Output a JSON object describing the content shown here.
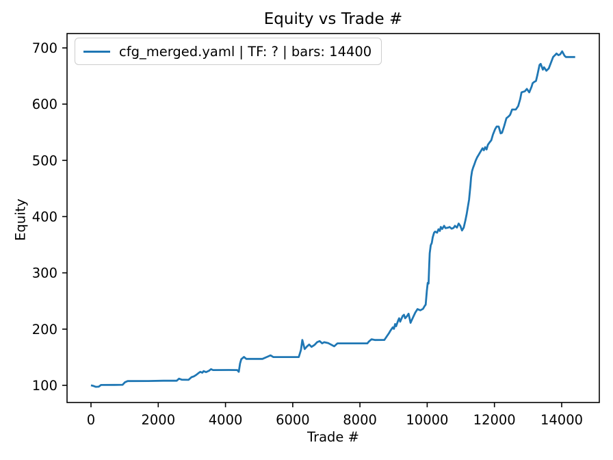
{
  "chart_data": {
    "type": "line",
    "title": "Equity vs Trade #",
    "xlabel": "Trade #",
    "ylabel": "Equity",
    "grid": false,
    "legend_position": "upper left",
    "axis_color": "#000000",
    "background_color": "#ffffff",
    "xlim": [
      -712,
      15119
    ],
    "ylim": [
      69.5,
      725.5
    ],
    "x_ticks": [
      0,
      2000,
      4000,
      6000,
      8000,
      10000,
      12000,
      14000
    ],
    "x_tick_labels": [
      "0",
      "2000",
      "4000",
      "6000",
      "8000",
      "10000",
      "12000",
      "14000"
    ],
    "y_ticks": [
      100,
      200,
      300,
      400,
      500,
      600,
      700
    ],
    "y_tick_labels": [
      "100",
      "200",
      "300",
      "400",
      "500",
      "600",
      "700"
    ],
    "legend": [
      {
        "label": "cfg_merged.yaml | TF: ? | bars: 14400",
        "color": "#1f77b4"
      }
    ],
    "series": [
      {
        "name": "cfg_merged.yaml | TF: ? | bars: 14400",
        "color": "#1f77b4",
        "points": [
          [
            0,
            100
          ],
          [
            60,
            99.2
          ],
          [
            140,
            97.4
          ],
          [
            230,
            97.6
          ],
          [
            300,
            100.6
          ],
          [
            700,
            100.8
          ],
          [
            940,
            101
          ],
          [
            1010,
            105.5
          ],
          [
            1090,
            107.6
          ],
          [
            1700,
            107.7
          ],
          [
            2150,
            108.2
          ],
          [
            2550,
            108.2
          ],
          [
            2620,
            111.8
          ],
          [
            2700,
            110
          ],
          [
            2900,
            109.8
          ],
          [
            2990,
            114.5
          ],
          [
            3060,
            116
          ],
          [
            3130,
            118.5
          ],
          [
            3190,
            121.5
          ],
          [
            3250,
            124
          ],
          [
            3310,
            122.5
          ],
          [
            3350,
            125.2
          ],
          [
            3420,
            123.5
          ],
          [
            3510,
            126
          ],
          [
            3570,
            128.8
          ],
          [
            3630,
            127.2
          ],
          [
            4100,
            127.3
          ],
          [
            4350,
            127.2
          ],
          [
            4395,
            124
          ],
          [
            4435,
            139
          ],
          [
            4470,
            146.5
          ],
          [
            4550,
            150.4
          ],
          [
            4620,
            147
          ],
          [
            5100,
            147
          ],
          [
            5260,
            151.2
          ],
          [
            5340,
            153.4
          ],
          [
            5420,
            150.3
          ],
          [
            6180,
            150.3
          ],
          [
            6245,
            163
          ],
          [
            6285,
            180.7
          ],
          [
            6355,
            164.5
          ],
          [
            6430,
            169.5
          ],
          [
            6490,
            172.6
          ],
          [
            6560,
            168.5
          ],
          [
            6650,
            172
          ],
          [
            6725,
            176.7
          ],
          [
            6800,
            178.7
          ],
          [
            6875,
            174.6
          ],
          [
            6935,
            176.7
          ],
          [
            7060,
            175
          ],
          [
            7235,
            169.4
          ],
          [
            7330,
            174.6
          ],
          [
            8220,
            174.6
          ],
          [
            8265,
            178
          ],
          [
            8345,
            182
          ],
          [
            8450,
            180.6
          ],
          [
            8725,
            180.7
          ],
          [
            8795,
            186.8
          ],
          [
            8865,
            193
          ],
          [
            8905,
            197
          ],
          [
            8975,
            203.1
          ],
          [
            9010,
            200.5
          ],
          [
            9045,
            209
          ],
          [
            9075,
            205.1
          ],
          [
            9135,
            215.2
          ],
          [
            9165,
            219.3
          ],
          [
            9195,
            213.2
          ],
          [
            9270,
            223.3
          ],
          [
            9310,
            225.4
          ],
          [
            9345,
            219.3
          ],
          [
            9400,
            223
          ],
          [
            9445,
            227.4
          ],
          [
            9505,
            211.2
          ],
          [
            9565,
            219.3
          ],
          [
            9645,
            229.4
          ],
          [
            9710,
            235.5
          ],
          [
            9795,
            233.5
          ],
          [
            9875,
            236
          ],
          [
            9925,
            241
          ],
          [
            9955,
            243.6
          ],
          [
            9990,
            268
          ],
          [
            10015,
            282.2
          ],
          [
            10040,
            281
          ],
          [
            10060,
            315
          ],
          [
            10075,
            334.9
          ],
          [
            10105,
            349.1
          ],
          [
            10135,
            353.1
          ],
          [
            10165,
            363.2
          ],
          [
            10205,
            371.4
          ],
          [
            10235,
            373.4
          ],
          [
            10295,
            371.4
          ],
          [
            10335,
            377.5
          ],
          [
            10375,
            374.5
          ],
          [
            10405,
            381.5
          ],
          [
            10445,
            378
          ],
          [
            10505,
            383.6
          ],
          [
            10545,
            379.5
          ],
          [
            10625,
            380.5
          ],
          [
            10665,
            381.5
          ],
          [
            10725,
            378.5
          ],
          [
            10785,
            380
          ],
          [
            10825,
            383.6
          ],
          [
            10885,
            380.5
          ],
          [
            10935,
            387.6
          ],
          [
            10985,
            383.6
          ],
          [
            11035,
            375.4
          ],
          [
            11085,
            380.5
          ],
          [
            11135,
            393
          ],
          [
            11175,
            405
          ],
          [
            11205,
            416.1
          ],
          [
            11245,
            430
          ],
          [
            11285,
            455
          ],
          [
            11305,
            470
          ],
          [
            11335,
            481
          ],
          [
            11365,
            487
          ],
          [
            11405,
            493.4
          ],
          [
            11445,
            500
          ],
          [
            11485,
            505.3
          ],
          [
            11525,
            509.3
          ],
          [
            11565,
            513.4
          ],
          [
            11605,
            517.4
          ],
          [
            11645,
            521.5
          ],
          [
            11685,
            518
          ],
          [
            11725,
            523.5
          ],
          [
            11765,
            519.5
          ],
          [
            11805,
            527.6
          ],
          [
            11855,
            532
          ],
          [
            11905,
            535.7
          ],
          [
            11955,
            545.8
          ],
          [
            12015,
            555
          ],
          [
            12065,
            560.1
          ],
          [
            12125,
            560.1
          ],
          [
            12185,
            548
          ],
          [
            12225,
            549
          ],
          [
            12285,
            560
          ],
          [
            12355,
            575
          ],
          [
            12425,
            578.3
          ],
          [
            12465,
            581
          ],
          [
            12525,
            590.4
          ],
          [
            12635,
            590.4
          ],
          [
            12705,
            596.5
          ],
          [
            12765,
            608.7
          ],
          [
            12805,
            620.9
          ],
          [
            12905,
            622.9
          ],
          [
            12965,
            627
          ],
          [
            13035,
            620.9
          ],
          [
            13105,
            631
          ],
          [
            13135,
            637.1
          ],
          [
            13175,
            639.2
          ],
          [
            13235,
            641.2
          ],
          [
            13275,
            651.3
          ],
          [
            13340,
            669.6
          ],
          [
            13375,
            671.6
          ],
          [
            13440,
            661.4
          ],
          [
            13475,
            665.5
          ],
          [
            13545,
            659.4
          ],
          [
            13615,
            663.4
          ],
          [
            13680,
            673.7
          ],
          [
            13745,
            683.8
          ],
          [
            13815,
            687.9
          ],
          [
            13845,
            690
          ],
          [
            13905,
            687
          ],
          [
            13955,
            688.5
          ],
          [
            14015,
            693.9
          ],
          [
            14085,
            685.9
          ],
          [
            14125,
            683.8
          ],
          [
            14400,
            683.8
          ]
        ]
      }
    ]
  }
}
